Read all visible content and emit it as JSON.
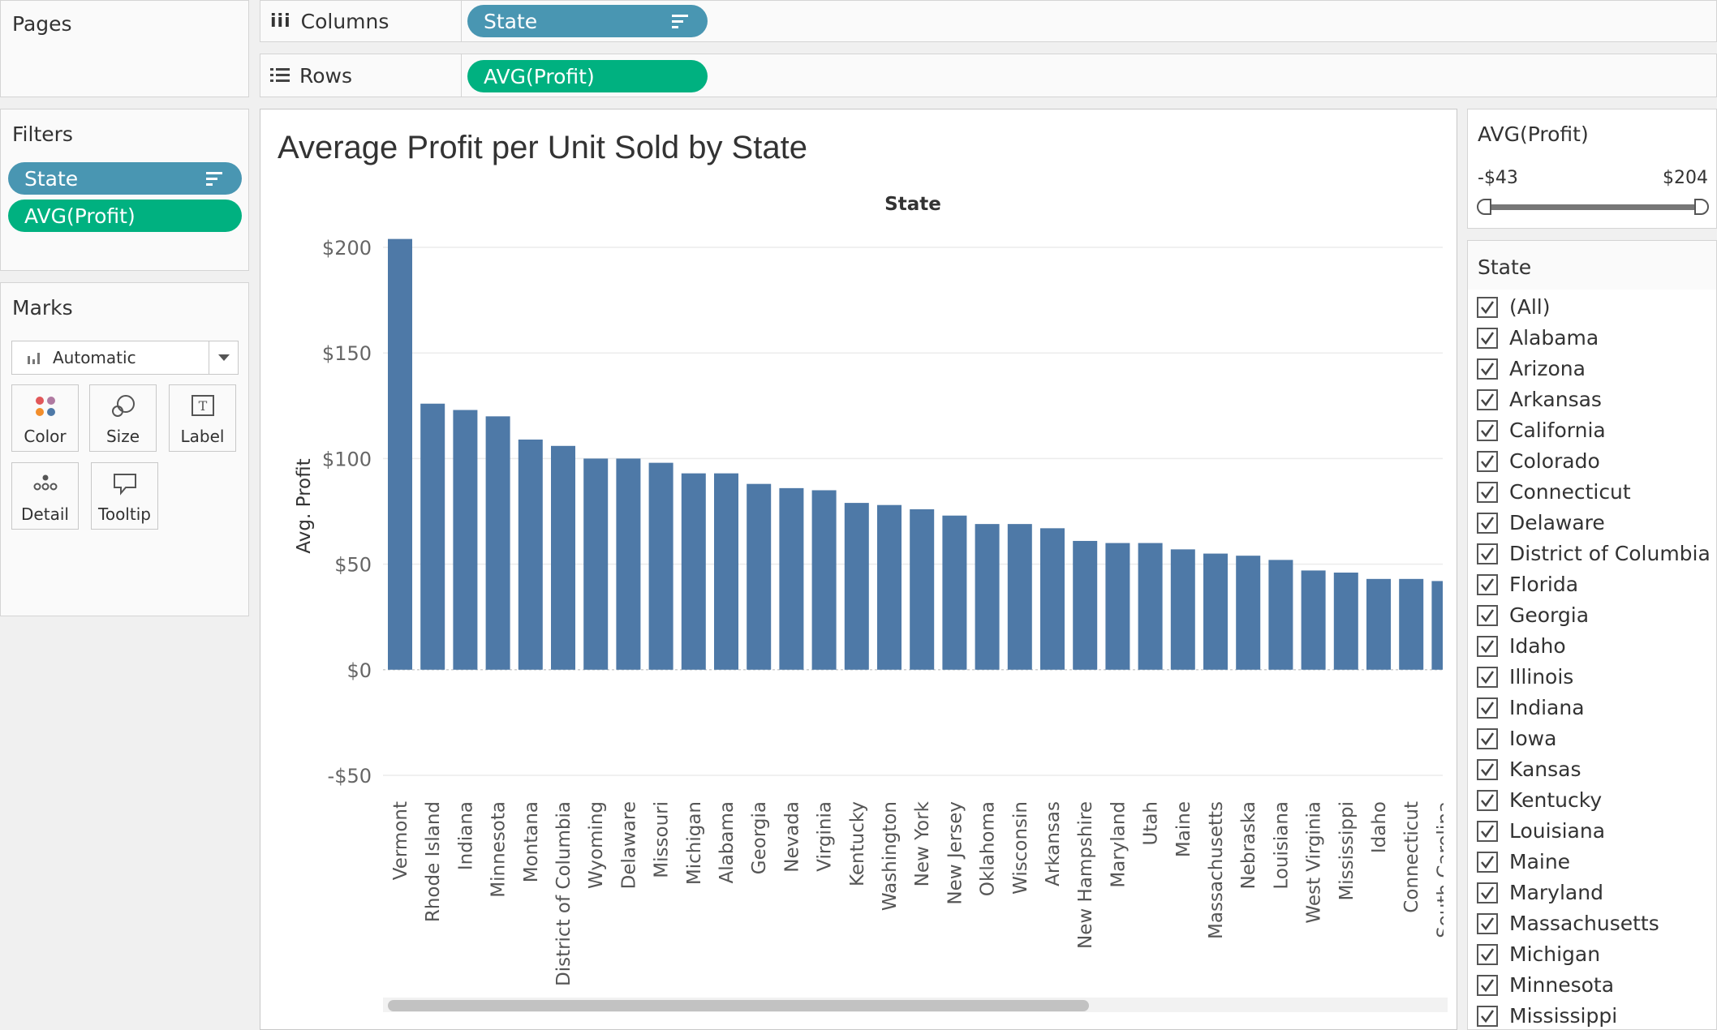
{
  "pages": {
    "title": "Pages"
  },
  "columns_shelf": {
    "label": "Columns",
    "pill": "State"
  },
  "rows_shelf": {
    "label": "Rows",
    "pill": "AVG(Profit)"
  },
  "filters": {
    "title": "Filters",
    "pills": [
      "State",
      "AVG(Profit)"
    ]
  },
  "marks": {
    "title": "Marks",
    "type": "Automatic",
    "buttons": [
      "Color",
      "Size",
      "Label",
      "Detail",
      "Tooltip"
    ]
  },
  "range_filter": {
    "title": "AVG(Profit)",
    "min_label": "-$43",
    "max_label": "$204",
    "min": -43,
    "max": 204
  },
  "state_filter": {
    "title": "State",
    "items": [
      "(All)",
      "Alabama",
      "Arizona",
      "Arkansas",
      "California",
      "Colorado",
      "Connecticut",
      "Delaware",
      "District of Columbia",
      "Florida",
      "Georgia",
      "Idaho",
      "Illinois",
      "Indiana",
      "Iowa",
      "Kansas",
      "Kentucky",
      "Louisiana",
      "Maine",
      "Maryland",
      "Massachusetts",
      "Michigan",
      "Minnesota",
      "Mississippi"
    ]
  },
  "colors": {
    "bar": "#4e79a7",
    "dimension_pill": "#4996b2",
    "measure_pill": "#00b180"
  },
  "chart_data": {
    "type": "bar",
    "title": "Average Profit per Unit Sold by State",
    "xlabel": "State",
    "ylabel": "Avg. Profit",
    "ylim": [
      -60,
      215
    ],
    "yticks": [
      200,
      150,
      100,
      50,
      0,
      -50
    ],
    "ytick_labels": [
      "$200",
      "$150",
      "$100",
      "$50",
      "$0",
      "-$50"
    ],
    "grid": true,
    "categories": [
      "Vermont",
      "Rhode Island",
      "Indiana",
      "Minnesota",
      "Montana",
      "District of Columbia",
      "Wyoming",
      "Delaware",
      "Missouri",
      "Michigan",
      "Alabama",
      "Georgia",
      "Nevada",
      "Virginia",
      "Kentucky",
      "Washington",
      "New York",
      "New Jersey",
      "Oklahoma",
      "Wisconsin",
      "Arkansas",
      "New Hampshire",
      "Maryland",
      "Utah",
      "Maine",
      "Massachusetts",
      "Nebraska",
      "Louisiana",
      "West Virginia",
      "Mississippi",
      "Idaho",
      "Connecticut",
      "South Carolina"
    ],
    "values": [
      204,
      126,
      123,
      120,
      109,
      106,
      100,
      100,
      98,
      93,
      93,
      88,
      86,
      85,
      79,
      78,
      76,
      73,
      69,
      69,
      67,
      61,
      60,
      60,
      57,
      55,
      54,
      52,
      47,
      46,
      43,
      43,
      42
    ]
  }
}
